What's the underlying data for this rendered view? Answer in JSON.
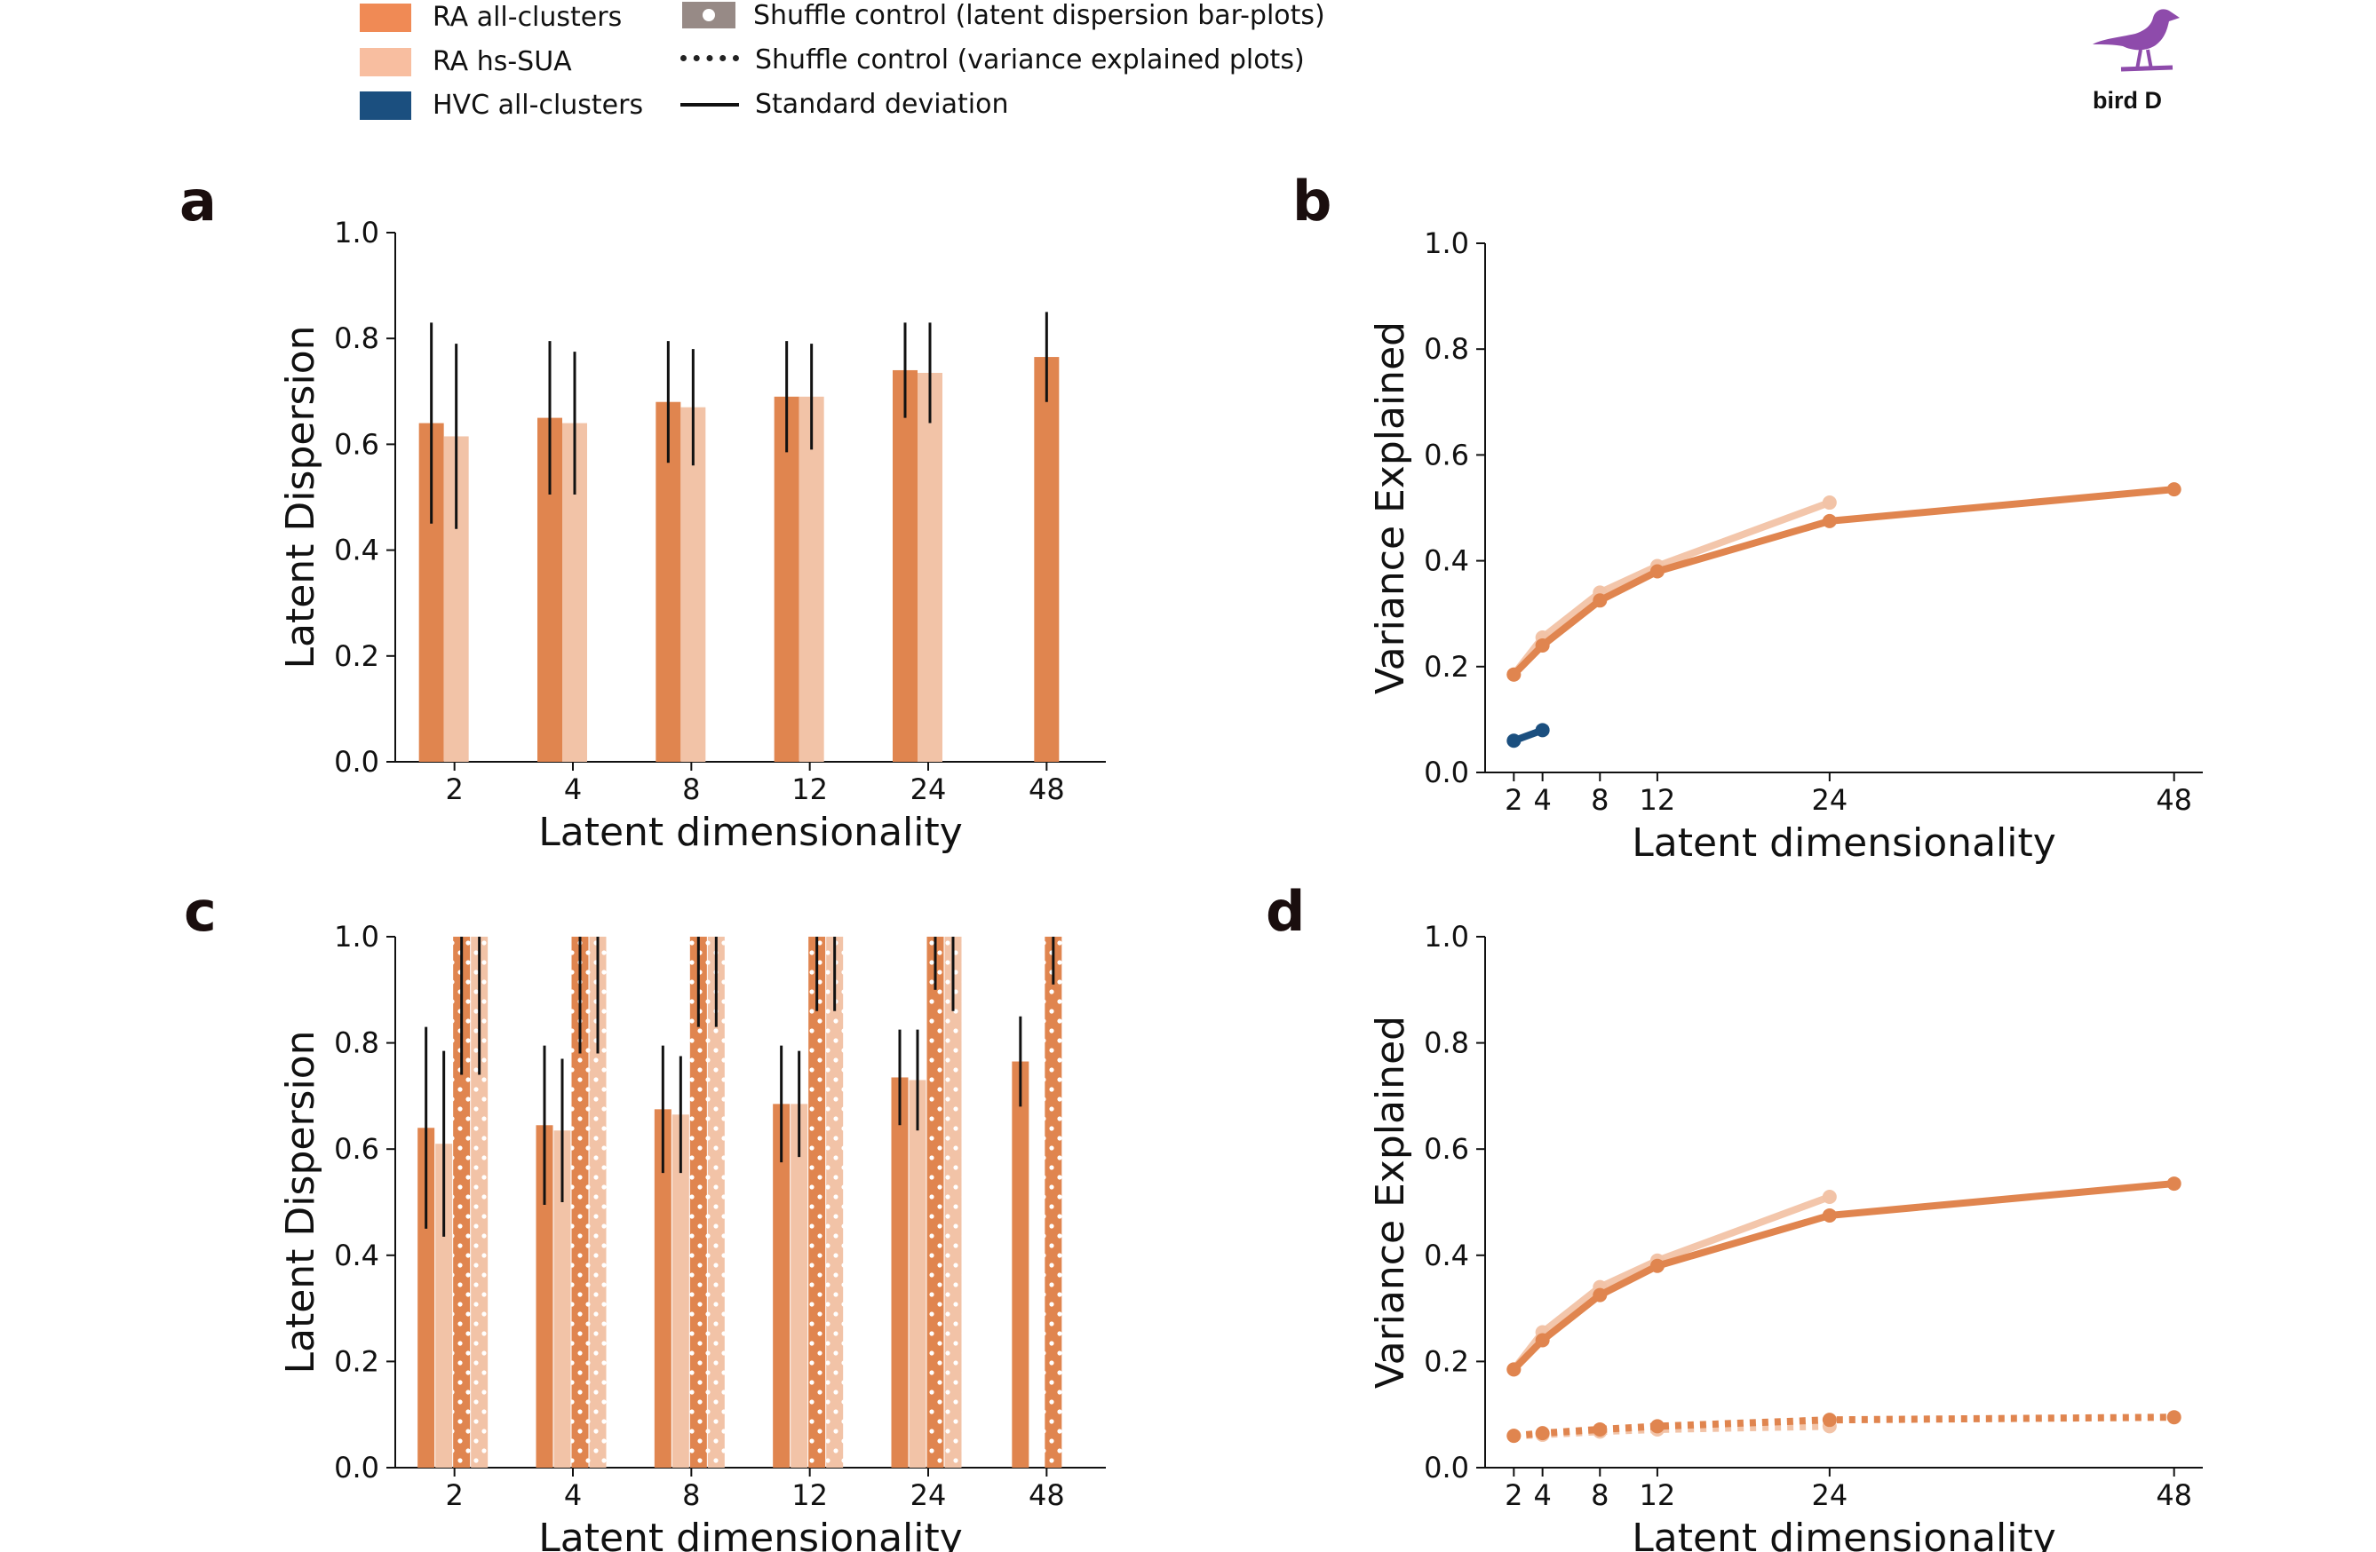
{
  "legend": {
    "items": [
      {
        "label": "RA all-clusters",
        "color": "#f08a55"
      },
      {
        "label": "RA hs-SUA",
        "color": "#f8bea0"
      },
      {
        "label": "HVC all-clusters",
        "color": "#1b4f7f"
      },
      {
        "label": "Shuffle control (latent dispersion bar-plots)",
        "color": "#978a86"
      },
      {
        "label": "Shuffle control (variance explained plots)"
      },
      {
        "label": "Standard deviation"
      }
    ]
  },
  "bird": {
    "label": "bird D",
    "icon": "bird-icon",
    "color": "#8e4bab"
  },
  "colors": {
    "ra_all": "#e0854f",
    "ra_hs": "#f2c3a7",
    "hvc": "#1b4f7f"
  },
  "chart_data": [
    {
      "panel": "a",
      "type": "bar",
      "xlabel": "Latent dimensionality",
      "ylabel": "Latent Dispersion",
      "ylim": [
        0,
        1
      ],
      "yticks": [
        "0.0",
        "0.2",
        "0.4",
        "0.6",
        "0.8",
        "1.0"
      ],
      "categories": [
        "2",
        "4",
        "8",
        "12",
        "24",
        "48"
      ],
      "series": [
        {
          "key": "ra_all",
          "values": [
            0.64,
            0.65,
            0.68,
            0.69,
            0.74,
            0.765
          ],
          "sd": [
            0.19,
            0.145,
            0.115,
            0.105,
            0.09,
            0.085
          ]
        },
        {
          "key": "ra_hs",
          "values": [
            0.615,
            0.64,
            0.67,
            0.69,
            0.735,
            null
          ],
          "sd": [
            0.175,
            0.135,
            0.11,
            0.1,
            0.095,
            null
          ]
        }
      ]
    },
    {
      "panel": "b",
      "type": "line",
      "xlabel": "Latent dimensionality",
      "ylabel": "Variance Explained",
      "ylim": [
        0,
        1
      ],
      "xlim": [
        0,
        50
      ],
      "yticks": [
        "0.0",
        "0.2",
        "0.4",
        "0.6",
        "0.8",
        "1.0"
      ],
      "xticks": [
        2,
        4,
        8,
        12,
        24,
        48
      ],
      "series": [
        {
          "key": "ra_hs",
          "x": [
            2,
            4,
            8,
            12,
            24
          ],
          "y": [
            0.185,
            0.255,
            0.34,
            0.39,
            0.51
          ]
        },
        {
          "key": "ra_all",
          "x": [
            2,
            4,
            8,
            12,
            24,
            48
          ],
          "y": [
            0.185,
            0.24,
            0.325,
            0.38,
            0.475,
            0.535
          ]
        },
        {
          "key": "hvc",
          "x": [
            2,
            4
          ],
          "y": [
            0.06,
            0.08
          ]
        }
      ]
    },
    {
      "panel": "c",
      "type": "bar",
      "xlabel": "Latent dimensionality",
      "ylabel": "Latent Dispersion",
      "ylim": [
        0,
        1
      ],
      "yticks": [
        "0.0",
        "0.2",
        "0.4",
        "0.6",
        "0.8",
        "1.0"
      ],
      "categories": [
        "2",
        "4",
        "8",
        "12",
        "24",
        "48"
      ],
      "series": [
        {
          "key": "ra_all",
          "values": [
            0.64,
            0.645,
            0.675,
            0.685,
            0.735,
            0.765
          ],
          "sd": [
            0.19,
            0.15,
            0.12,
            0.11,
            0.09,
            0.085
          ]
        },
        {
          "key": "ra_hs",
          "values": [
            0.61,
            0.635,
            0.665,
            0.685,
            0.73,
            null
          ],
          "sd": [
            0.175,
            0.135,
            0.11,
            0.1,
            0.095,
            null
          ]
        },
        {
          "key": "ra_all_shuffle",
          "shuffle": true,
          "values": [
            1.0,
            1.0,
            1.0,
            1.0,
            1.0,
            1.0
          ],
          "sd": [
            0.26,
            0.22,
            0.17,
            0.14,
            0.1,
            0.09
          ]
        },
        {
          "key": "ra_hs_shuffle",
          "shuffle": true,
          "values": [
            1.0,
            1.0,
            1.0,
            1.0,
            1.0,
            null
          ],
          "sd": [
            0.26,
            0.22,
            0.17,
            0.14,
            0.14,
            null
          ]
        }
      ]
    },
    {
      "panel": "d",
      "type": "line",
      "xlabel": "Latent dimensionality",
      "ylabel": "Variance Explained",
      "ylim": [
        0,
        1
      ],
      "xlim": [
        0,
        50
      ],
      "yticks": [
        "0.0",
        "0.2",
        "0.4",
        "0.6",
        "0.8",
        "1.0"
      ],
      "xticks": [
        2,
        4,
        8,
        12,
        24,
        48
      ],
      "series": [
        {
          "key": "ra_hs",
          "x": [
            2,
            4,
            8,
            12,
            24
          ],
          "y": [
            0.185,
            0.255,
            0.34,
            0.39,
            0.51
          ]
        },
        {
          "key": "ra_all",
          "x": [
            2,
            4,
            8,
            12,
            24,
            48
          ],
          "y": [
            0.185,
            0.24,
            0.325,
            0.38,
            0.475,
            0.535
          ]
        },
        {
          "key": "ra_hs",
          "shuffle": true,
          "x": [
            2,
            4,
            8,
            12,
            24
          ],
          "y": [
            0.06,
            0.062,
            0.068,
            0.072,
            0.078
          ]
        },
        {
          "key": "ra_all",
          "shuffle": true,
          "x": [
            2,
            4,
            8,
            12,
            24,
            48
          ],
          "y": [
            0.06,
            0.065,
            0.072,
            0.078,
            0.09,
            0.095
          ]
        }
      ]
    }
  ]
}
